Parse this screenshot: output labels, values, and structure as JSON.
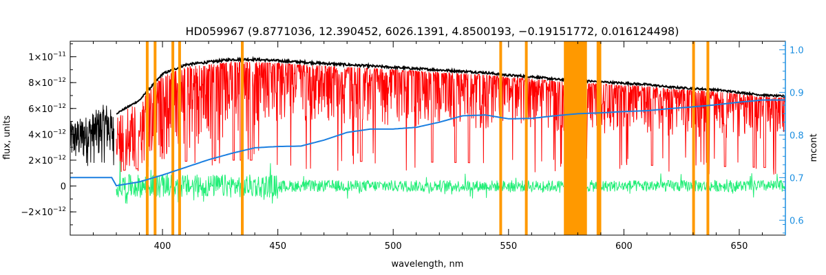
{
  "chart_data": {
    "type": "line",
    "title": "HD059967   (9.8771036, 12.390452, 6026.1391, 4.8500193, −0.19151772, 0.016124498)",
    "xlabel": "wavelength, nm",
    "ylabel": "flux, units",
    "y2label": "mcont",
    "xlim": [
      360,
      670
    ],
    "ylim": [
      -3.8e-12,
      1.12e-11
    ],
    "y2lim": [
      0.565,
      1.02
    ],
    "x_ticks": [
      400,
      450,
      500,
      550,
      600,
      650
    ],
    "x_tick_labels": [
      "400",
      "450",
      "500",
      "550",
      "600",
      "650"
    ],
    "y_ticks": [
      -2e-12,
      0,
      2e-12,
      4e-12,
      6e-12,
      8e-12,
      1e-11
    ],
    "y_tick_labels": [
      {
        "mant": "−2×10",
        "exp": "−12"
      },
      {
        "mant": "0",
        "exp": ""
      },
      {
        "mant": "2×10",
        "exp": "−12"
      },
      {
        "mant": "4×10",
        "exp": "−12"
      },
      {
        "mant": "6×10",
        "exp": "−12"
      },
      {
        "mant": "8×10",
        "exp": "−12"
      },
      {
        "mant": "1×10",
        "exp": "−11"
      }
    ],
    "y2_ticks": [
      0.6,
      0.7,
      0.8,
      0.9,
      1.0
    ],
    "y2_tick_labels": [
      "0.6",
      "0.7",
      "0.8",
      "0.9",
      "1.0"
    ],
    "masked_lines_nm": [
      393.4,
      396.8,
      404.5,
      407.4,
      434.6,
      546.6,
      557.7,
      588.8,
      589.6,
      630.2,
      636.4
    ],
    "masked_band_nm": [
      574,
      584
    ],
    "continuum": {
      "name": "mcont",
      "x": [
        360,
        378,
        380,
        390,
        400,
        410,
        420,
        430,
        440,
        450,
        460,
        470,
        480,
        490,
        500,
        510,
        520,
        530,
        540,
        550,
        560,
        570,
        580,
        590,
        600,
        610,
        620,
        630,
        640,
        650,
        660,
        670
      ],
      "y": [
        0.7,
        0.7,
        0.681,
        0.69,
        0.706,
        0.724,
        0.742,
        0.757,
        0.77,
        0.773,
        0.774,
        0.788,
        0.806,
        0.814,
        0.814,
        0.818,
        0.83,
        0.845,
        0.847,
        0.838,
        0.839,
        0.845,
        0.85,
        0.852,
        0.855,
        0.857,
        0.862,
        0.866,
        0.871,
        0.877,
        0.882,
        0.882
      ]
    },
    "model_envelope": {
      "x": [
        380,
        390,
        400,
        410,
        420,
        430,
        440,
        450,
        460,
        470,
        480,
        490,
        500,
        510,
        520,
        530,
        540,
        550,
        560,
        570,
        580,
        590,
        600,
        610,
        620,
        630,
        640,
        650,
        660,
        670
      ],
      "y": [
        5.5e-12,
        6.5e-12,
        8.5e-12,
        9.2e-12,
        9.4e-12,
        9.6e-12,
        9.6e-12,
        9.5e-12,
        9.4e-12,
        9.3e-12,
        9.2e-12,
        9.1e-12,
        9e-12,
        8.9e-12,
        8.8e-12,
        8.7e-12,
        8.6e-12,
        8.4e-12,
        8.3e-12,
        8.1e-12,
        8e-12,
        7.9e-12,
        7.8e-12,
        7.7e-12,
        7.5e-12,
        7.4e-12,
        7.3e-12,
        7.1e-12,
        6.9e-12,
        6.8e-12
      ]
    },
    "observed_blue": {
      "x": [
        360,
        368,
        376,
        379
      ],
      "y": [
        5e-12,
        5.5e-12,
        6.5e-12,
        5.5e-12
      ]
    },
    "series_colors": {
      "observed": "#000000",
      "model": "#ff0000",
      "model_masked": "#ffff00",
      "residual": "#22ee77",
      "continuum": "#1a7ee0",
      "mask": "#ff9900",
      "right_axis": "#1a8ee0"
    }
  }
}
